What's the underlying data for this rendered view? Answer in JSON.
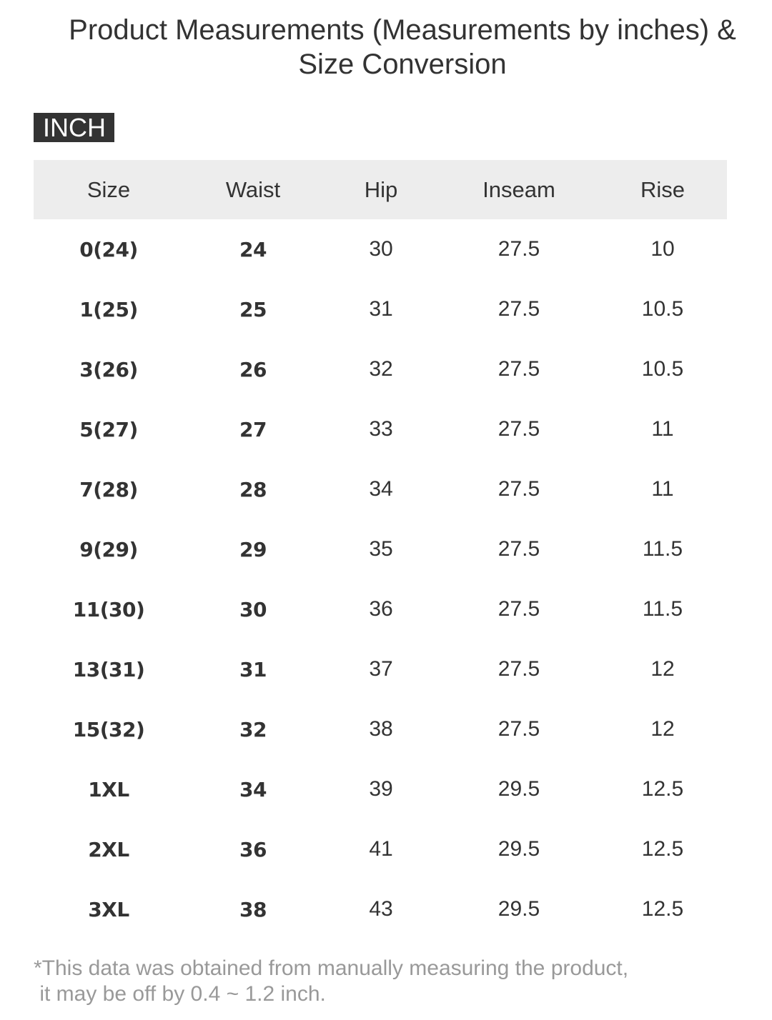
{
  "title": "Product Measurements (Measurements by inches) & Size Conversion",
  "unit_label": "INCH",
  "table": {
    "headers": [
      "Size",
      "Waist",
      "Hip",
      "Inseam",
      "Rise"
    ],
    "rows": [
      [
        "0(24)",
        "24",
        "30",
        "27.5",
        "10"
      ],
      [
        "1(25)",
        "25",
        "31",
        "27.5",
        "10.5"
      ],
      [
        "3(26)",
        "26",
        "32",
        "27.5",
        "10.5"
      ],
      [
        "5(27)",
        "27",
        "33",
        "27.5",
        "11"
      ],
      [
        "7(28)",
        "28",
        "34",
        "27.5",
        "11"
      ],
      [
        "9(29)",
        "29",
        "35",
        "27.5",
        "11.5"
      ],
      [
        "11(30)",
        "30",
        "36",
        "27.5",
        "11.5"
      ],
      [
        "13(31)",
        "31",
        "37",
        "27.5",
        "12"
      ],
      [
        "15(32)",
        "32",
        "38",
        "27.5",
        "12"
      ],
      [
        "1XL",
        "34",
        "39",
        "29.5",
        "12.5"
      ],
      [
        "2XL",
        "36",
        "41",
        "29.5",
        "12.5"
      ],
      [
        "3XL",
        "38",
        "43",
        "29.5",
        "12.5"
      ]
    ]
  },
  "footnote": "*This data was obtained from manually measuring the product,\n it may be off by 0.4 ~ 1.2 inch."
}
